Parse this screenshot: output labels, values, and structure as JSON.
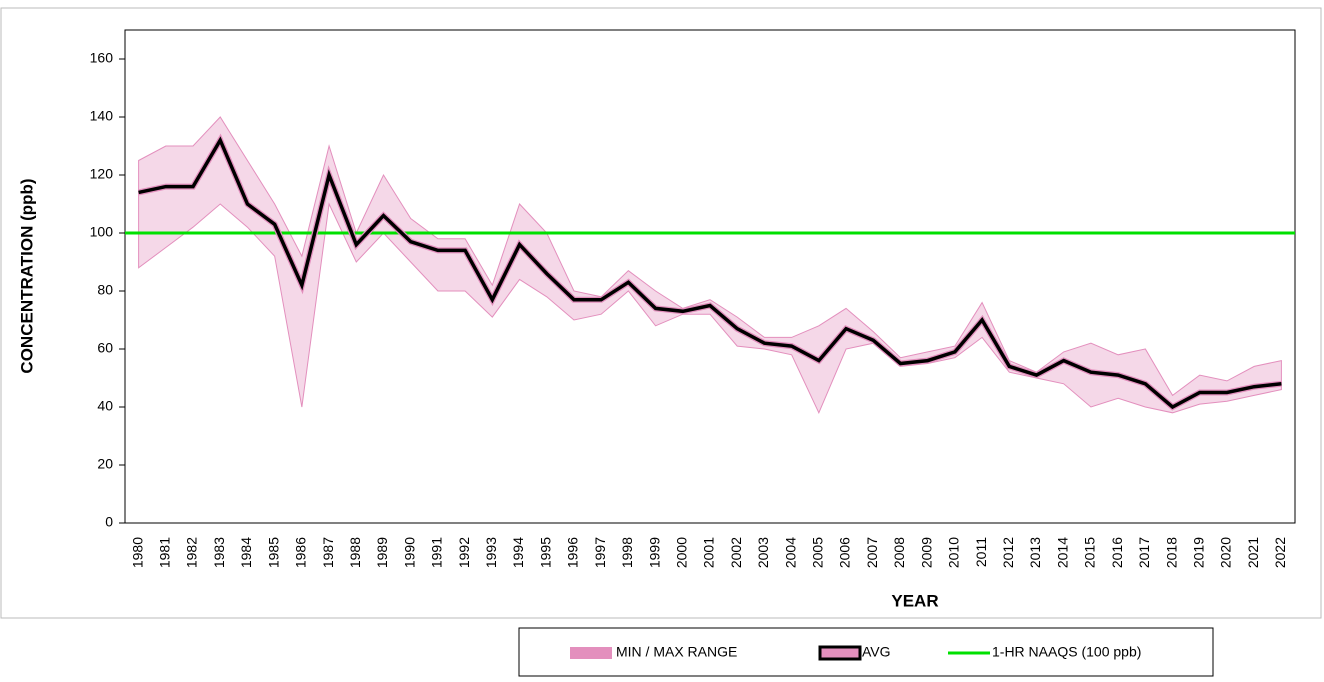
{
  "chart_data": {
    "type": "line",
    "y_label": "CONCENTRATION (ppb)",
    "x_label": "YEAR",
    "categories": [
      "1980",
      "1981",
      "1982",
      "1983",
      "1984",
      "1985",
      "1986",
      "1987",
      "1988",
      "1989",
      "1990",
      "1991",
      "1992",
      "1993",
      "1994",
      "1995",
      "1996",
      "1997",
      "1998",
      "1999",
      "2000",
      "2001",
      "2002",
      "2003",
      "2004",
      "2005",
      "2006",
      "2007",
      "2008",
      "2009",
      "2010",
      "2011",
      "2012",
      "2013",
      "2014",
      "2015",
      "2016",
      "2017",
      "2018",
      "2019",
      "2020",
      "2021",
      "2022"
    ],
    "range": {
      "name": "MIN / MAX RANGE",
      "color": "#e38fbd",
      "low": [
        88,
        95,
        102,
        110,
        102,
        92,
        40,
        110,
        90,
        100,
        90,
        80,
        80,
        71,
        84,
        78,
        70,
        72,
        80,
        68,
        72,
        72,
        61,
        60,
        58,
        38,
        60,
        62,
        54,
        55,
        57,
        64,
        52,
        50,
        48,
        40,
        43,
        40,
        38,
        41,
        42,
        44,
        46
      ],
      "high": [
        125,
        130,
        130,
        140,
        125,
        110,
        92,
        130,
        100,
        120,
        105,
        98,
        98,
        82,
        110,
        100,
        80,
        78,
        87,
        80,
        74,
        77,
        71,
        64,
        64,
        68,
        74,
        66,
        57,
        59,
        61,
        76,
        56,
        52,
        59,
        62,
        58,
        60,
        44,
        51,
        49,
        54,
        56
      ]
    },
    "series": [
      {
        "name": "AVG",
        "color": "#000000",
        "values": [
          114,
          116,
          116,
          132,
          110,
          103,
          82,
          120,
          96,
          106,
          97,
          94,
          94,
          77,
          96,
          86,
          77,
          77,
          83,
          74,
          73,
          75,
          67,
          62,
          61,
          56,
          67,
          63,
          55,
          56,
          59,
          70,
          54,
          51,
          56,
          52,
          51,
          48,
          40,
          45,
          45,
          47,
          48
        ]
      }
    ],
    "reference_line": {
      "name": "1-HR NAAQS (100 ppb)",
      "value": 100,
      "color": "#00e000"
    },
    "ylim": [
      0,
      170
    ],
    "yticks": [
      0,
      20,
      40,
      60,
      80,
      100,
      120,
      140,
      160
    ]
  }
}
